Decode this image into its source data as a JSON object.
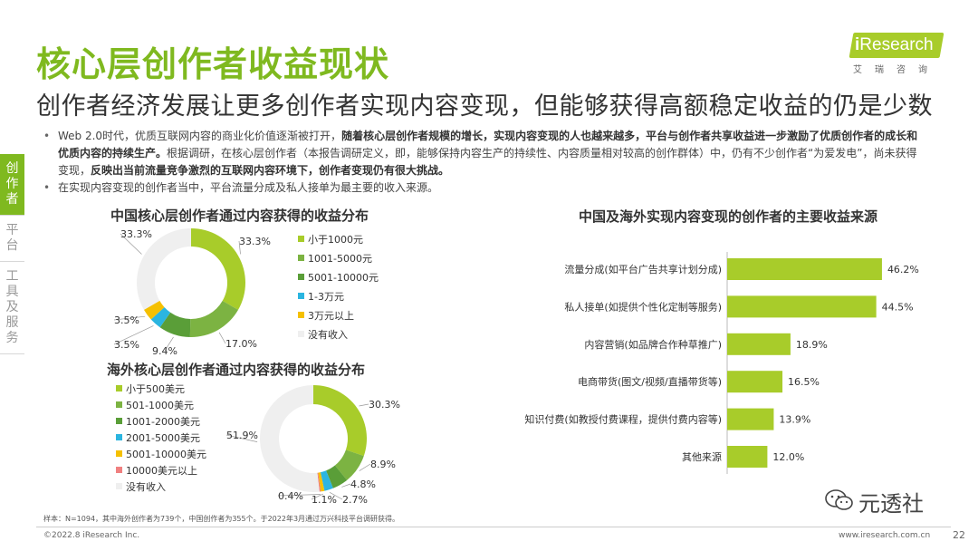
{
  "header": {
    "title": "核心层创作者收益现状",
    "subtitle": "创作者经济发展让更多创作者实现内容变现，但能够获得高额稳定收益的仍是少数"
  },
  "logo": {
    "i": "i",
    "text": "Research",
    "sub": "艾瑞咨询"
  },
  "bullets": {
    "b1_a": "Web 2.0时代，优质互联网内容的商业化价值逐渐被打开，",
    "b1_b": "随着核心层创作者规模的增长，实现内容变现的人也越来越多，平台与创作者共享收益进一步激励了优质创作者的成长和优质内容的持续生产。",
    "b1_c": "根据调研，在核心层创作者（本报告调研定义，即，能够保持内容生产的持续性、内容质量相对较高的创作群体）中，仍有不少创作者“为爱发电”，尚未获得变现，",
    "b1_d": "反映出当前流量竞争激烈的互联网内容环境下，创作者变现仍有很大挑战。",
    "b2": "在实现内容变现的创作者当中，平台流量分成及私人接单为最主要的收入来源。"
  },
  "sidetabs": [
    "创作者",
    "平台",
    "工具及服务"
  ],
  "colors": {
    "accent": "#7fb91f",
    "donut": [
      "#a8cc2a",
      "#7cb342",
      "#5a9e38",
      "#2bb5e0",
      "#f5c000",
      "#f08080",
      "#efefef"
    ],
    "bar": "#a8cc2a"
  },
  "chart_data": [
    {
      "type": "pie",
      "title": "中国核心层创作者通过内容获得的收益分布",
      "categories": [
        "小于1000元",
        "1001-5000元",
        "5001-10000元",
        "1-3万元",
        "3万元以上",
        "没有收入"
      ],
      "values": [
        33.3,
        17.0,
        9.4,
        3.5,
        3.5,
        33.3
      ],
      "labels": [
        "33.3%",
        "17.0%",
        "9.4%",
        "3.5%",
        "3.5%",
        "33.3%"
      ]
    },
    {
      "type": "pie",
      "title": "海外核心层创作者通过内容获得的收益分布",
      "categories": [
        "小于500美元",
        "501-1000美元",
        "1001-2000美元",
        "2001-5000美元",
        "5001-10000美元",
        "10000美元以上",
        "没有收入"
      ],
      "values": [
        30.3,
        8.9,
        4.8,
        2.7,
        1.1,
        0.4,
        51.9
      ],
      "labels": [
        "30.3%",
        "8.9%",
        "4.8%",
        "2.7%",
        "1.1%",
        "0.4%",
        "51.9%"
      ]
    },
    {
      "type": "bar",
      "orientation": "horizontal",
      "title": "中国及海外实现内容变现的创作者的主要收益来源",
      "categories": [
        "流量分成(如平台广告共享计划分成)",
        "私人接单(如提供个性化定制等服务)",
        "内容营销(如品牌合作种草推广)",
        "电商带货(图文/视频/直播带货等)",
        "知识付费(如教授付费课程，提供付费内容等)",
        "其他来源"
      ],
      "values": [
        46.2,
        44.5,
        18.9,
        16.5,
        13.9,
        12.0
      ],
      "labels": [
        "46.2%",
        "44.5%",
        "18.9%",
        "16.5%",
        "13.9%",
        "12.0%"
      ]
    }
  ],
  "footer": {
    "note": "样本：N=1094，其中海外创作者为739个，中国创作者为355个。于2022年3月通过万兴科技平台调研获得。",
    "copyright": "©2022.8 iResearch Inc.",
    "website": "www.iresearch.com.cn",
    "page": "22",
    "watermark": "元透社"
  }
}
